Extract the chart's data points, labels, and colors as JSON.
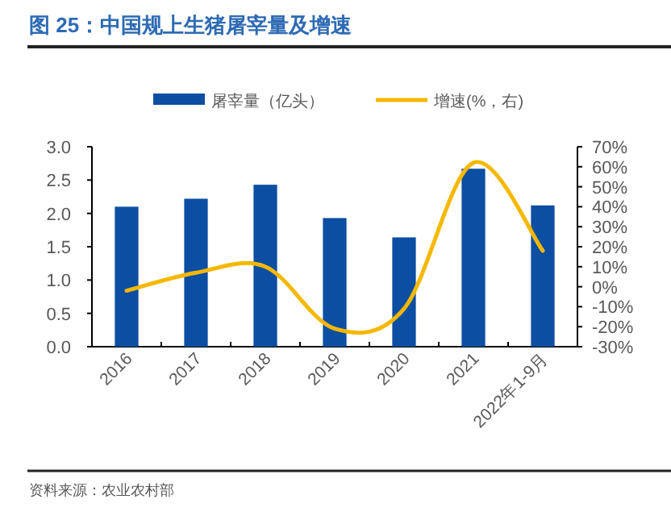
{
  "chart_data": {
    "type": "bar",
    "title": "图 25：中国规上生猪屠宰量及增速",
    "categories": [
      "2016",
      "2017",
      "2018",
      "2019",
      "2020",
      "2021",
      "2022年1-9月"
    ],
    "series": [
      {
        "name": "屠宰量（亿头）",
        "color": "#0b4ea2",
        "values": [
          2.1,
          2.22,
          2.43,
          1.93,
          1.64,
          2.67,
          2.12
        ]
      },
      {
        "name": "增速(%，右)",
        "type": "line",
        "axis": "y2",
        "color": "#f5b800",
        "values": [
          -2,
          7,
          10,
          -21,
          -11,
          62,
          18
        ]
      }
    ],
    "ylim": [
      0,
      3
    ],
    "yticks": [
      {
        "value": 0,
        "label": "0.0"
      },
      {
        "value": 0.5,
        "label": "0.5"
      },
      {
        "value": 1,
        "label": "1.0"
      },
      {
        "value": 1.5,
        "label": "1.5"
      },
      {
        "value": 2,
        "label": "2.0"
      },
      {
        "value": 2.5,
        "label": "2.5"
      },
      {
        "value": 3,
        "label": "3.0"
      }
    ],
    "y2lim": [
      -30,
      70
    ],
    "y2ticks": [
      {
        "value": -30,
        "label": "-30%"
      },
      {
        "value": -20,
        "label": "-20%"
      },
      {
        "value": -10,
        "label": "-10%"
      },
      {
        "value": 0,
        "label": "0%"
      },
      {
        "value": 10,
        "label": "10%"
      },
      {
        "value": 20,
        "label": "20%"
      },
      {
        "value": 30,
        "label": "30%"
      },
      {
        "value": 40,
        "label": "40%"
      },
      {
        "value": 50,
        "label": "50%"
      },
      {
        "value": 60,
        "label": "60%"
      },
      {
        "value": 70,
        "label": "70%"
      }
    ],
    "legend": "top",
    "grid": false,
    "marker": "none",
    "line_style": "solid",
    "annotations": [
      "资料来源：农业农村部"
    ]
  }
}
